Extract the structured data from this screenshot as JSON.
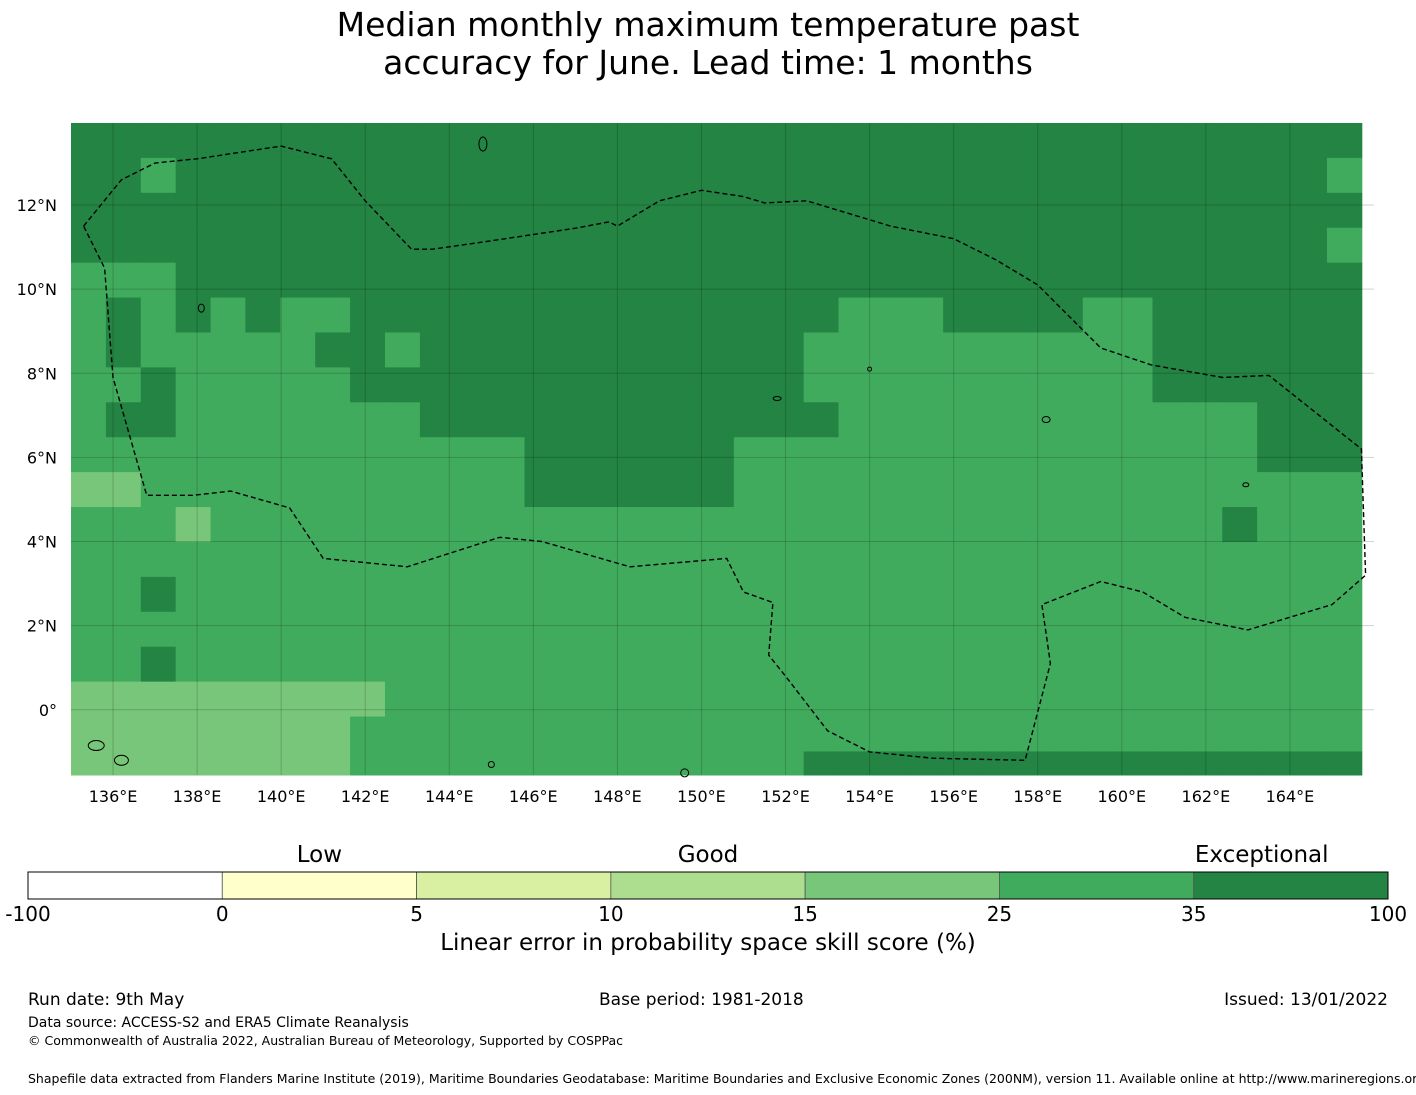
{
  "title": {
    "line1": "Median monthly maximum temperature past",
    "line2": "accuracy for June. Lead time: 1 months"
  },
  "map": {
    "lon_ticks": [
      "136°E",
      "138°E",
      "140°E",
      "142°E",
      "144°E",
      "146°E",
      "148°E",
      "150°E",
      "152°E",
      "154°E",
      "156°E",
      "158°E",
      "160°E",
      "162°E",
      "164°E"
    ],
    "lat_ticks": [
      "12°N",
      "10°N",
      "8°N",
      "6°N",
      "4°N",
      "2°N",
      "0°"
    ],
    "lon_tick_values": [
      136,
      138,
      140,
      142,
      144,
      146,
      148,
      150,
      152,
      154,
      156,
      158,
      160,
      162,
      164
    ],
    "lat_tick_values": [
      12,
      10,
      8,
      6,
      4,
      2,
      0
    ],
    "extent": {
      "lon_min": 135.0,
      "lon_max": 166.0,
      "lat_min": -1.55,
      "lat_max": 13.95
    },
    "grid_resolution_deg": 0.83,
    "grid_cols": 37,
    "grid_rows": 19,
    "skill_class_rows": [
      "6666666666666666666666666666666666666",
      "6656666666666666666666666666666666665",
      "6666666666666666666666666666666666666",
      "6666666666666666666666666666666666665",
      "5556666666666666666666666666666666666",
      "5656565566666666666666555666655666666",
      "5655555665666666666665555555555666666",
      "5565555566666666666665555555555666666",
      "5665555555666666666666555555555555666",
      "5555555555555666666555555555555555666",
      "4455555555555666666555555555555555555",
      "5554555555555555555555555555555556555",
      "5555555555555555555555555555555555555",
      "5565555555555555555555555555555555555",
      "5555555555555555555555555555555555555",
      "5565555555555555555555555555555555555",
      "4444444445555555555555555555555555555",
      "4444444455555555555555555555555555555",
      "4444444455555555555556666666666666666"
    ],
    "boundary_path_lonlat": [
      [
        135.3,
        11.5
      ],
      [
        136.2,
        12.6
      ],
      [
        137.0,
        13.0
      ],
      [
        138.0,
        13.1
      ],
      [
        140.0,
        13.4
      ],
      [
        141.2,
        13.1
      ],
      [
        142.0,
        12.1
      ],
      [
        143.1,
        10.95
      ],
      [
        143.6,
        10.95
      ],
      [
        145.0,
        11.15
      ],
      [
        147.0,
        11.45
      ],
      [
        147.8,
        11.6
      ],
      [
        148.0,
        11.5
      ],
      [
        149.0,
        12.1
      ],
      [
        150.0,
        12.35
      ],
      [
        151.0,
        12.2
      ],
      [
        151.5,
        12.05
      ],
      [
        152.5,
        12.1
      ],
      [
        154.5,
        11.5
      ],
      [
        156.0,
        11.2
      ],
      [
        157.0,
        10.7
      ],
      [
        158.0,
        10.1
      ],
      [
        159.5,
        8.6
      ],
      [
        160.7,
        8.2
      ],
      [
        162.4,
        7.9
      ],
      [
        163.5,
        7.95
      ],
      [
        165.7,
        6.2
      ],
      [
        165.8,
        3.2
      ],
      [
        165.0,
        2.5
      ],
      [
        163.0,
        1.9
      ],
      [
        161.5,
        2.2
      ],
      [
        160.5,
        2.8
      ],
      [
        159.5,
        3.05
      ],
      [
        158.1,
        2.5
      ],
      [
        158.3,
        1.1
      ],
      [
        157.7,
        -1.2
      ],
      [
        155.5,
        -1.15
      ],
      [
        154.0,
        -1.0
      ],
      [
        153.0,
        -0.5
      ],
      [
        152.0,
        0.8
      ],
      [
        151.6,
        1.3
      ],
      [
        151.7,
        2.55
      ],
      [
        151.0,
        2.8
      ],
      [
        150.6,
        3.6
      ],
      [
        148.3,
        3.4
      ],
      [
        146.2,
        4.0
      ],
      [
        145.2,
        4.1
      ],
      [
        143.0,
        3.4
      ],
      [
        141.0,
        3.6
      ],
      [
        140.2,
        4.8
      ],
      [
        138.8,
        5.2
      ],
      [
        137.9,
        5.1
      ],
      [
        136.8,
        5.1
      ],
      [
        136.0,
        7.9
      ],
      [
        135.8,
        10.5
      ],
      [
        135.3,
        11.5
      ]
    ]
  },
  "colorbar": {
    "category_labels": [
      "Low",
      "Good",
      "Exceptional"
    ],
    "tick_labels": [
      "-100",
      "0",
      "5",
      "10",
      "15",
      "25",
      "35",
      "100"
    ],
    "colors": [
      "#ffffff",
      "#ffffcc",
      "#d9f0a3",
      "#addd8e",
      "#78c679",
      "#41ab5d",
      "#238443"
    ],
    "title": "Linear error in probability space skill score (%)"
  },
  "footer": {
    "run_date": "Run date: 9th May",
    "base_period": "Base period: 1981-2018",
    "issued": "Issued: 13/01/2022",
    "data_source": "Data source: ACCESS-S2 and ERA5 Climate Reanalysis",
    "copyright": "© Commonwealth of Australia 2022, Australian Bureau of Meteorology, Supported by COSPPac",
    "shapefile": "Shapefile data extracted from Flanders Marine Institute (2019), Maritime Boundaries Geodatabase: Maritime Boundaries and Exclusive Economic Zones (200NM), version 11. Available online at http://www.marineregions.org/."
  }
}
